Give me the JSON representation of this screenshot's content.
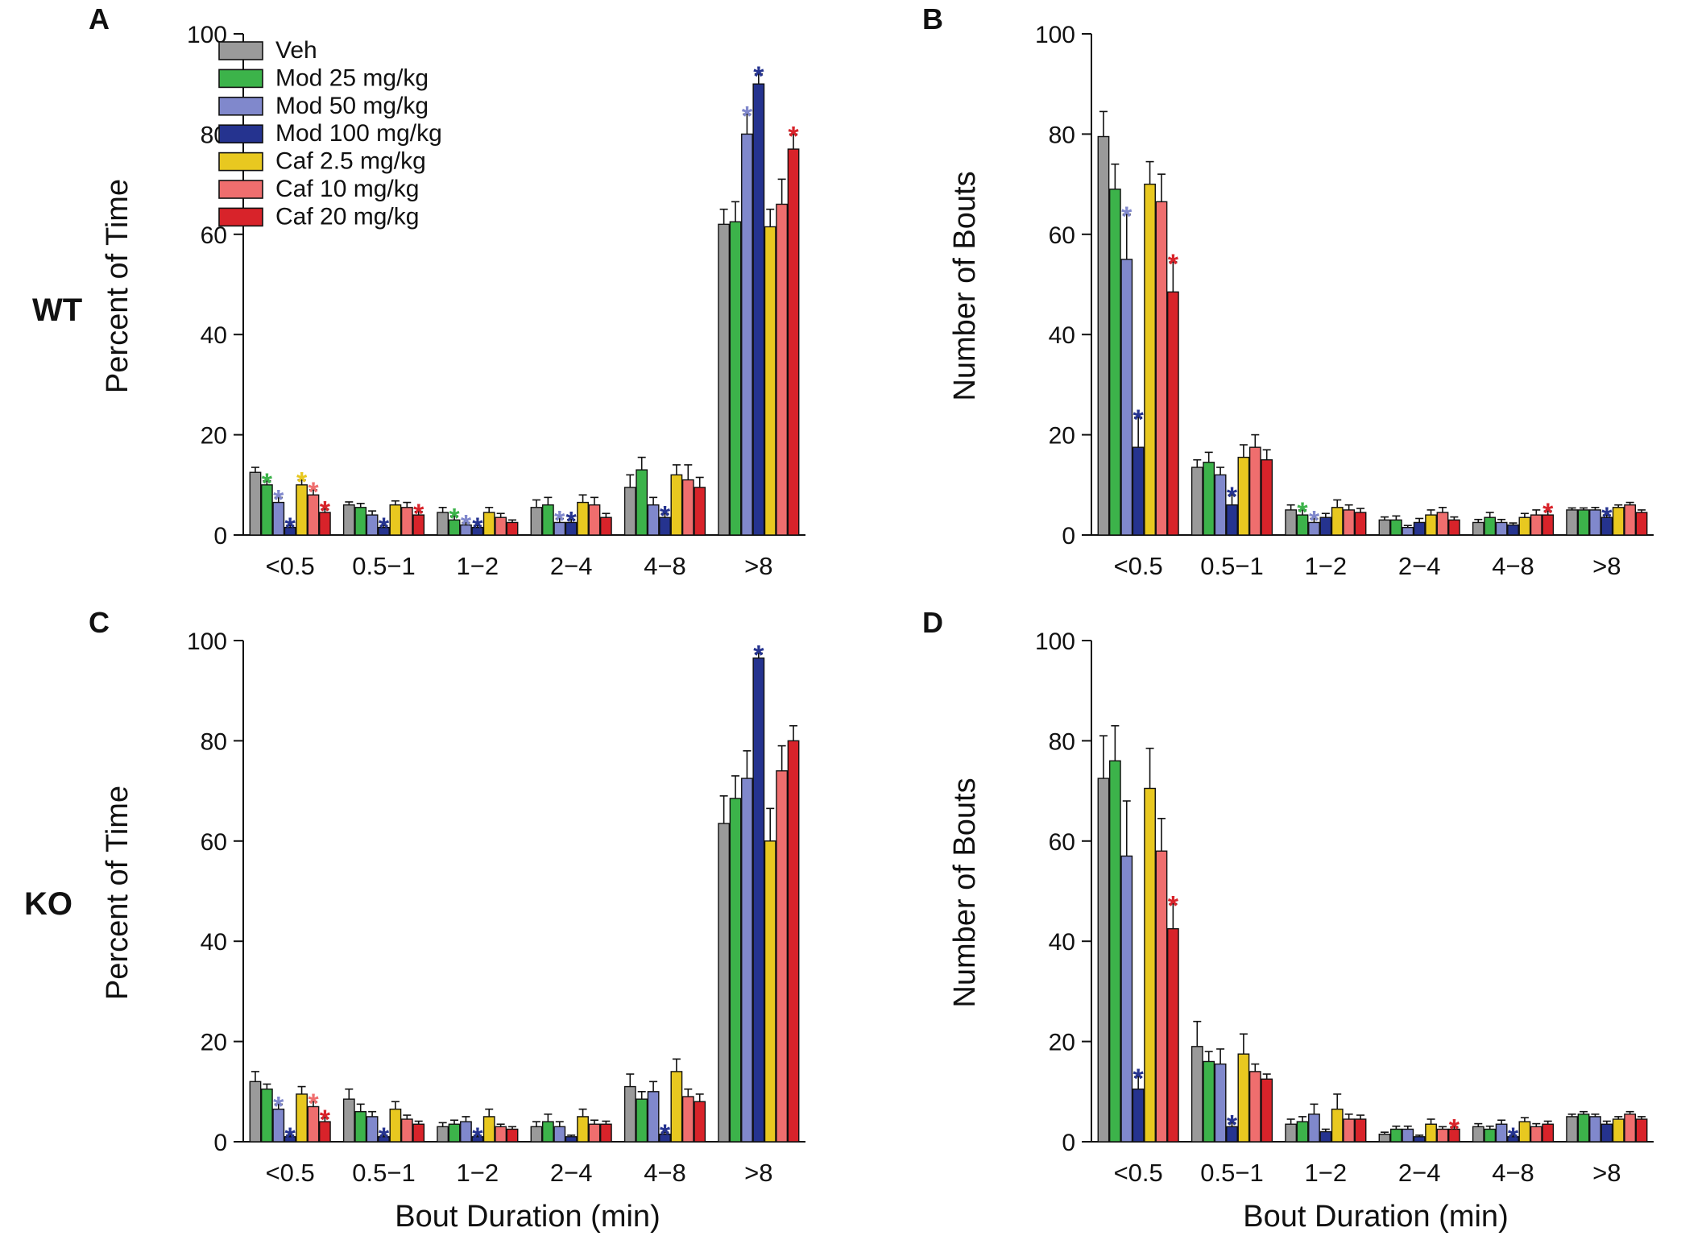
{
  "figure": {
    "row_labels": [
      "WT",
      "KO"
    ],
    "x_axis_label": "Bout Duration (min)"
  },
  "legend": [
    {
      "name": "Veh",
      "color": "#9a9a9a"
    },
    {
      "name": "Mod 25 mg/kg",
      "color": "#3cb34a"
    },
    {
      "name": "Mod 50 mg/kg",
      "color": "#8088cc"
    },
    {
      "name": "Mod 100 mg/kg",
      "color": "#25338f"
    },
    {
      "name": "Caf 2.5 mg/kg",
      "color": "#e8c820"
    },
    {
      "name": "Caf 10 mg/kg",
      "color": "#ef6e6e"
    },
    {
      "name": "Caf 20 mg/kg",
      "color": "#d8232a"
    }
  ],
  "chart_data": [
    {
      "panel": "A",
      "row": "WT",
      "type": "bar",
      "ylabel": "Percent of Time",
      "xlabel": "Bout Duration (min)",
      "ylim": [
        0,
        100
      ],
      "yticks": [
        0,
        20,
        40,
        60,
        80,
        100
      ],
      "categories": [
        "<0.5",
        "0.5−1",
        "1−2",
        "2−4",
        "4−8",
        ">8"
      ],
      "series": [
        {
          "name": "Veh",
          "values": [
            12.5,
            6,
            4.5,
            5.5,
            9.5,
            62
          ],
          "errors": [
            1,
            0.6,
            1,
            1.5,
            2.5,
            3
          ]
        },
        {
          "name": "Mod 25 mg/kg",
          "values": [
            10,
            5.5,
            3,
            6,
            13,
            62.5
          ],
          "errors": [
            0.8,
            0.8,
            0.8,
            1.5,
            2.5,
            4
          ]
        },
        {
          "name": "Mod 50 mg/kg",
          "values": [
            6.5,
            4,
            2,
            2.5,
            6,
            80
          ],
          "errors": [
            1,
            0.8,
            0.5,
            0.8,
            1.5,
            4
          ]
        },
        {
          "name": "Mod 100 mg/kg",
          "values": [
            1.5,
            1.5,
            1.5,
            2.5,
            3.5,
            90
          ],
          "errors": [
            0.4,
            0.4,
            0.4,
            0.6,
            0.8,
            2
          ]
        },
        {
          "name": "Caf 2.5 mg/kg",
          "values": [
            10,
            6,
            4.5,
            6.5,
            12,
            61.5
          ],
          "errors": [
            1,
            0.8,
            1,
            1.5,
            2,
            3.5
          ]
        },
        {
          "name": "Caf 10 mg/kg",
          "values": [
            8,
            5.5,
            3.5,
            6,
            11,
            66
          ],
          "errors": [
            1,
            1,
            0.8,
            1.5,
            3,
            5
          ]
        },
        {
          "name": "Caf 20 mg/kg",
          "values": [
            4.5,
            4,
            2.5,
            3.5,
            9.5,
            77
          ],
          "errors": [
            0.7,
            0.7,
            0.5,
            0.8,
            2,
            3
          ]
        }
      ],
      "significance": [
        {
          "category": 0,
          "series": 1
        },
        {
          "category": 0,
          "series": 2
        },
        {
          "category": 0,
          "series": 3
        },
        {
          "category": 0,
          "series": 4
        },
        {
          "category": 0,
          "series": 5
        },
        {
          "category": 0,
          "series": 6
        },
        {
          "category": 1,
          "series": 3
        },
        {
          "category": 1,
          "series": 6
        },
        {
          "category": 2,
          "series": 1
        },
        {
          "category": 2,
          "series": 2
        },
        {
          "category": 2,
          "series": 3
        },
        {
          "category": 3,
          "series": 2
        },
        {
          "category": 3,
          "series": 3
        },
        {
          "category": 4,
          "series": 3
        },
        {
          "category": 5,
          "series": 2
        },
        {
          "category": 5,
          "series": 3
        },
        {
          "category": 5,
          "series": 6
        }
      ],
      "star_text": "*"
    },
    {
      "panel": "B",
      "row": "WT",
      "type": "bar",
      "ylabel": "Number of Bouts",
      "xlabel": "Bout Duration (min)",
      "ylim": [
        0,
        100
      ],
      "yticks": [
        0,
        20,
        40,
        60,
        80,
        100
      ],
      "categories": [
        "<0.5",
        "0.5−1",
        "1−2",
        "2−4",
        "4−8",
        ">8"
      ],
      "series": [
        {
          "name": "Veh",
          "values": [
            79.5,
            13.5,
            5,
            3,
            2.5,
            5
          ],
          "errors": [
            5,
            1.5,
            1,
            0.6,
            0.6,
            0.4
          ]
        },
        {
          "name": "Mod 25 mg/kg",
          "values": [
            69,
            14.5,
            4,
            3,
            3.5,
            5
          ],
          "errors": [
            5,
            2,
            1,
            0.8,
            1,
            0.4
          ]
        },
        {
          "name": "Mod 50 mg/kg",
          "values": [
            55,
            12,
            2.5,
            1.5,
            2.5,
            5
          ],
          "errors": [
            9,
            1.5,
            0.8,
            0.4,
            0.6,
            0.5
          ]
        },
        {
          "name": "Mod 100 mg/kg",
          "values": [
            17.5,
            6,
            3.5,
            2.5,
            2,
            3.5
          ],
          "errors": [
            6,
            2,
            0.8,
            0.8,
            0.4,
            0.5
          ]
        },
        {
          "name": "Caf 2.5 mg/kg",
          "values": [
            70,
            15.5,
            5.5,
            4,
            3.5,
            5.5
          ],
          "errors": [
            4.5,
            2.5,
            1.5,
            1,
            0.8,
            0.5
          ]
        },
        {
          "name": "Caf 10 mg/kg",
          "values": [
            66.5,
            17.5,
            5,
            4.5,
            4,
            6
          ],
          "errors": [
            5.5,
            2.5,
            1,
            1,
            1,
            0.5
          ]
        },
        {
          "name": "Caf 20 mg/kg",
          "values": [
            48.5,
            15,
            4.5,
            3,
            4,
            4.5
          ],
          "errors": [
            6,
            2,
            0.8,
            0.6,
            0.8,
            0.5
          ]
        }
      ],
      "significance": [
        {
          "category": 0,
          "series": 2
        },
        {
          "category": 0,
          "series": 3
        },
        {
          "category": 0,
          "series": 6
        },
        {
          "category": 1,
          "series": 3
        },
        {
          "category": 2,
          "series": 1
        },
        {
          "category": 2,
          "series": 2
        },
        {
          "category": 4,
          "series": 6
        },
        {
          "category": 5,
          "series": 3
        }
      ],
      "star_text": "*"
    },
    {
      "panel": "C",
      "row": "KO",
      "type": "bar",
      "ylabel": "Percent of Time",
      "xlabel": "Bout Duration (min)",
      "ylim": [
        0,
        100
      ],
      "yticks": [
        0,
        20,
        40,
        60,
        80,
        100
      ],
      "categories": [
        "<0.5",
        "0.5−1",
        "1−2",
        "2−4",
        "4−8",
        ">8"
      ],
      "series": [
        {
          "name": "Veh",
          "values": [
            12,
            8.5,
            3,
            3,
            11,
            63.5
          ],
          "errors": [
            2,
            2,
            0.8,
            1,
            2.5,
            5.5
          ]
        },
        {
          "name": "Mod 25 mg/kg",
          "values": [
            10.5,
            6,
            3.5,
            4,
            8.5,
            68.5
          ],
          "errors": [
            1,
            1.5,
            0.8,
            1.5,
            1.5,
            4.5
          ]
        },
        {
          "name": "Mod 50 mg/kg",
          "values": [
            6.5,
            5,
            4,
            3,
            10,
            72.5
          ],
          "errors": [
            1,
            1,
            1,
            1,
            2,
            5.5
          ]
        },
        {
          "name": "Mod 100 mg/kg",
          "values": [
            1,
            1,
            1,
            1,
            1.5,
            96.5
          ],
          "errors": [
            0.3,
            0.3,
            0.3,
            0.3,
            0.4,
            1
          ]
        },
        {
          "name": "Caf 2.5 mg/kg",
          "values": [
            9.5,
            6.5,
            5,
            5,
            14,
            60
          ],
          "errors": [
            1.5,
            1.5,
            1.5,
            1.5,
            2.5,
            6.5
          ]
        },
        {
          "name": "Caf 10 mg/kg",
          "values": [
            7,
            4.5,
            3,
            3.5,
            9,
            74
          ],
          "errors": [
            1,
            0.8,
            0.5,
            0.8,
            1.5,
            5
          ]
        },
        {
          "name": "Caf 20 mg/kg",
          "values": [
            4,
            3.5,
            2.5,
            3.5,
            8,
            80
          ],
          "errors": [
            0.8,
            0.6,
            0.5,
            0.6,
            1.5,
            3
          ]
        }
      ],
      "significance": [
        {
          "category": 0,
          "series": 2
        },
        {
          "category": 0,
          "series": 3
        },
        {
          "category": 0,
          "series": 5
        },
        {
          "category": 0,
          "series": 6
        },
        {
          "category": 1,
          "series": 3
        },
        {
          "category": 2,
          "series": 3
        },
        {
          "category": 4,
          "series": 3
        },
        {
          "category": 5,
          "series": 3
        }
      ],
      "star_text": "*"
    },
    {
      "panel": "D",
      "row": "KO",
      "type": "bar",
      "ylabel": "Number of Bouts",
      "xlabel": "Bout Duration (min)",
      "ylim": [
        0,
        100
      ],
      "yticks": [
        0,
        20,
        40,
        60,
        80,
        100
      ],
      "categories": [
        "<0.5",
        "0.5−1",
        "1−2",
        "2−4",
        "4−8",
        ">8"
      ],
      "series": [
        {
          "name": "Veh",
          "values": [
            72.5,
            19,
            3.5,
            1.5,
            3,
            5
          ],
          "errors": [
            8.5,
            5,
            1,
            0.4,
            0.6,
            0.5
          ]
        },
        {
          "name": "Mod 25 mg/kg",
          "values": [
            76,
            16,
            4,
            2.5,
            2.5,
            5.5
          ],
          "errors": [
            7,
            2,
            1,
            0.6,
            0.6,
            0.5
          ]
        },
        {
          "name": "Mod 50 mg/kg",
          "values": [
            57,
            15.5,
            5.5,
            2.5,
            3.5,
            5
          ],
          "errors": [
            11,
            3,
            2,
            0.6,
            0.8,
            0.5
          ]
        },
        {
          "name": "Mod 100 mg/kg",
          "values": [
            10.5,
            3,
            2,
            1,
            1,
            3.5
          ],
          "errors": [
            2.5,
            0.8,
            0.5,
            0.3,
            0.3,
            0.6
          ]
        },
        {
          "name": "Caf 2.5 mg/kg",
          "values": [
            70.5,
            17.5,
            6.5,
            3.5,
            4,
            4.5
          ],
          "errors": [
            8,
            4,
            3,
            1,
            0.8,
            0.5
          ]
        },
        {
          "name": "Caf 10 mg/kg",
          "values": [
            58,
            14,
            4.5,
            2.5,
            3,
            5.5
          ],
          "errors": [
            6.5,
            1.5,
            1,
            0.5,
            0.6,
            0.5
          ]
        },
        {
          "name": "Caf 20 mg/kg",
          "values": [
            42.5,
            12.5,
            4.5,
            2.5,
            3.5,
            4.5
          ],
          "errors": [
            5,
            1,
            0.8,
            0.5,
            0.6,
            0.5
          ]
        }
      ],
      "significance": [
        {
          "category": 0,
          "series": 3
        },
        {
          "category": 0,
          "series": 6
        },
        {
          "category": 1,
          "series": 3
        },
        {
          "category": 3,
          "series": 6
        },
        {
          "category": 4,
          "series": 3
        }
      ],
      "star_text": "*"
    }
  ]
}
